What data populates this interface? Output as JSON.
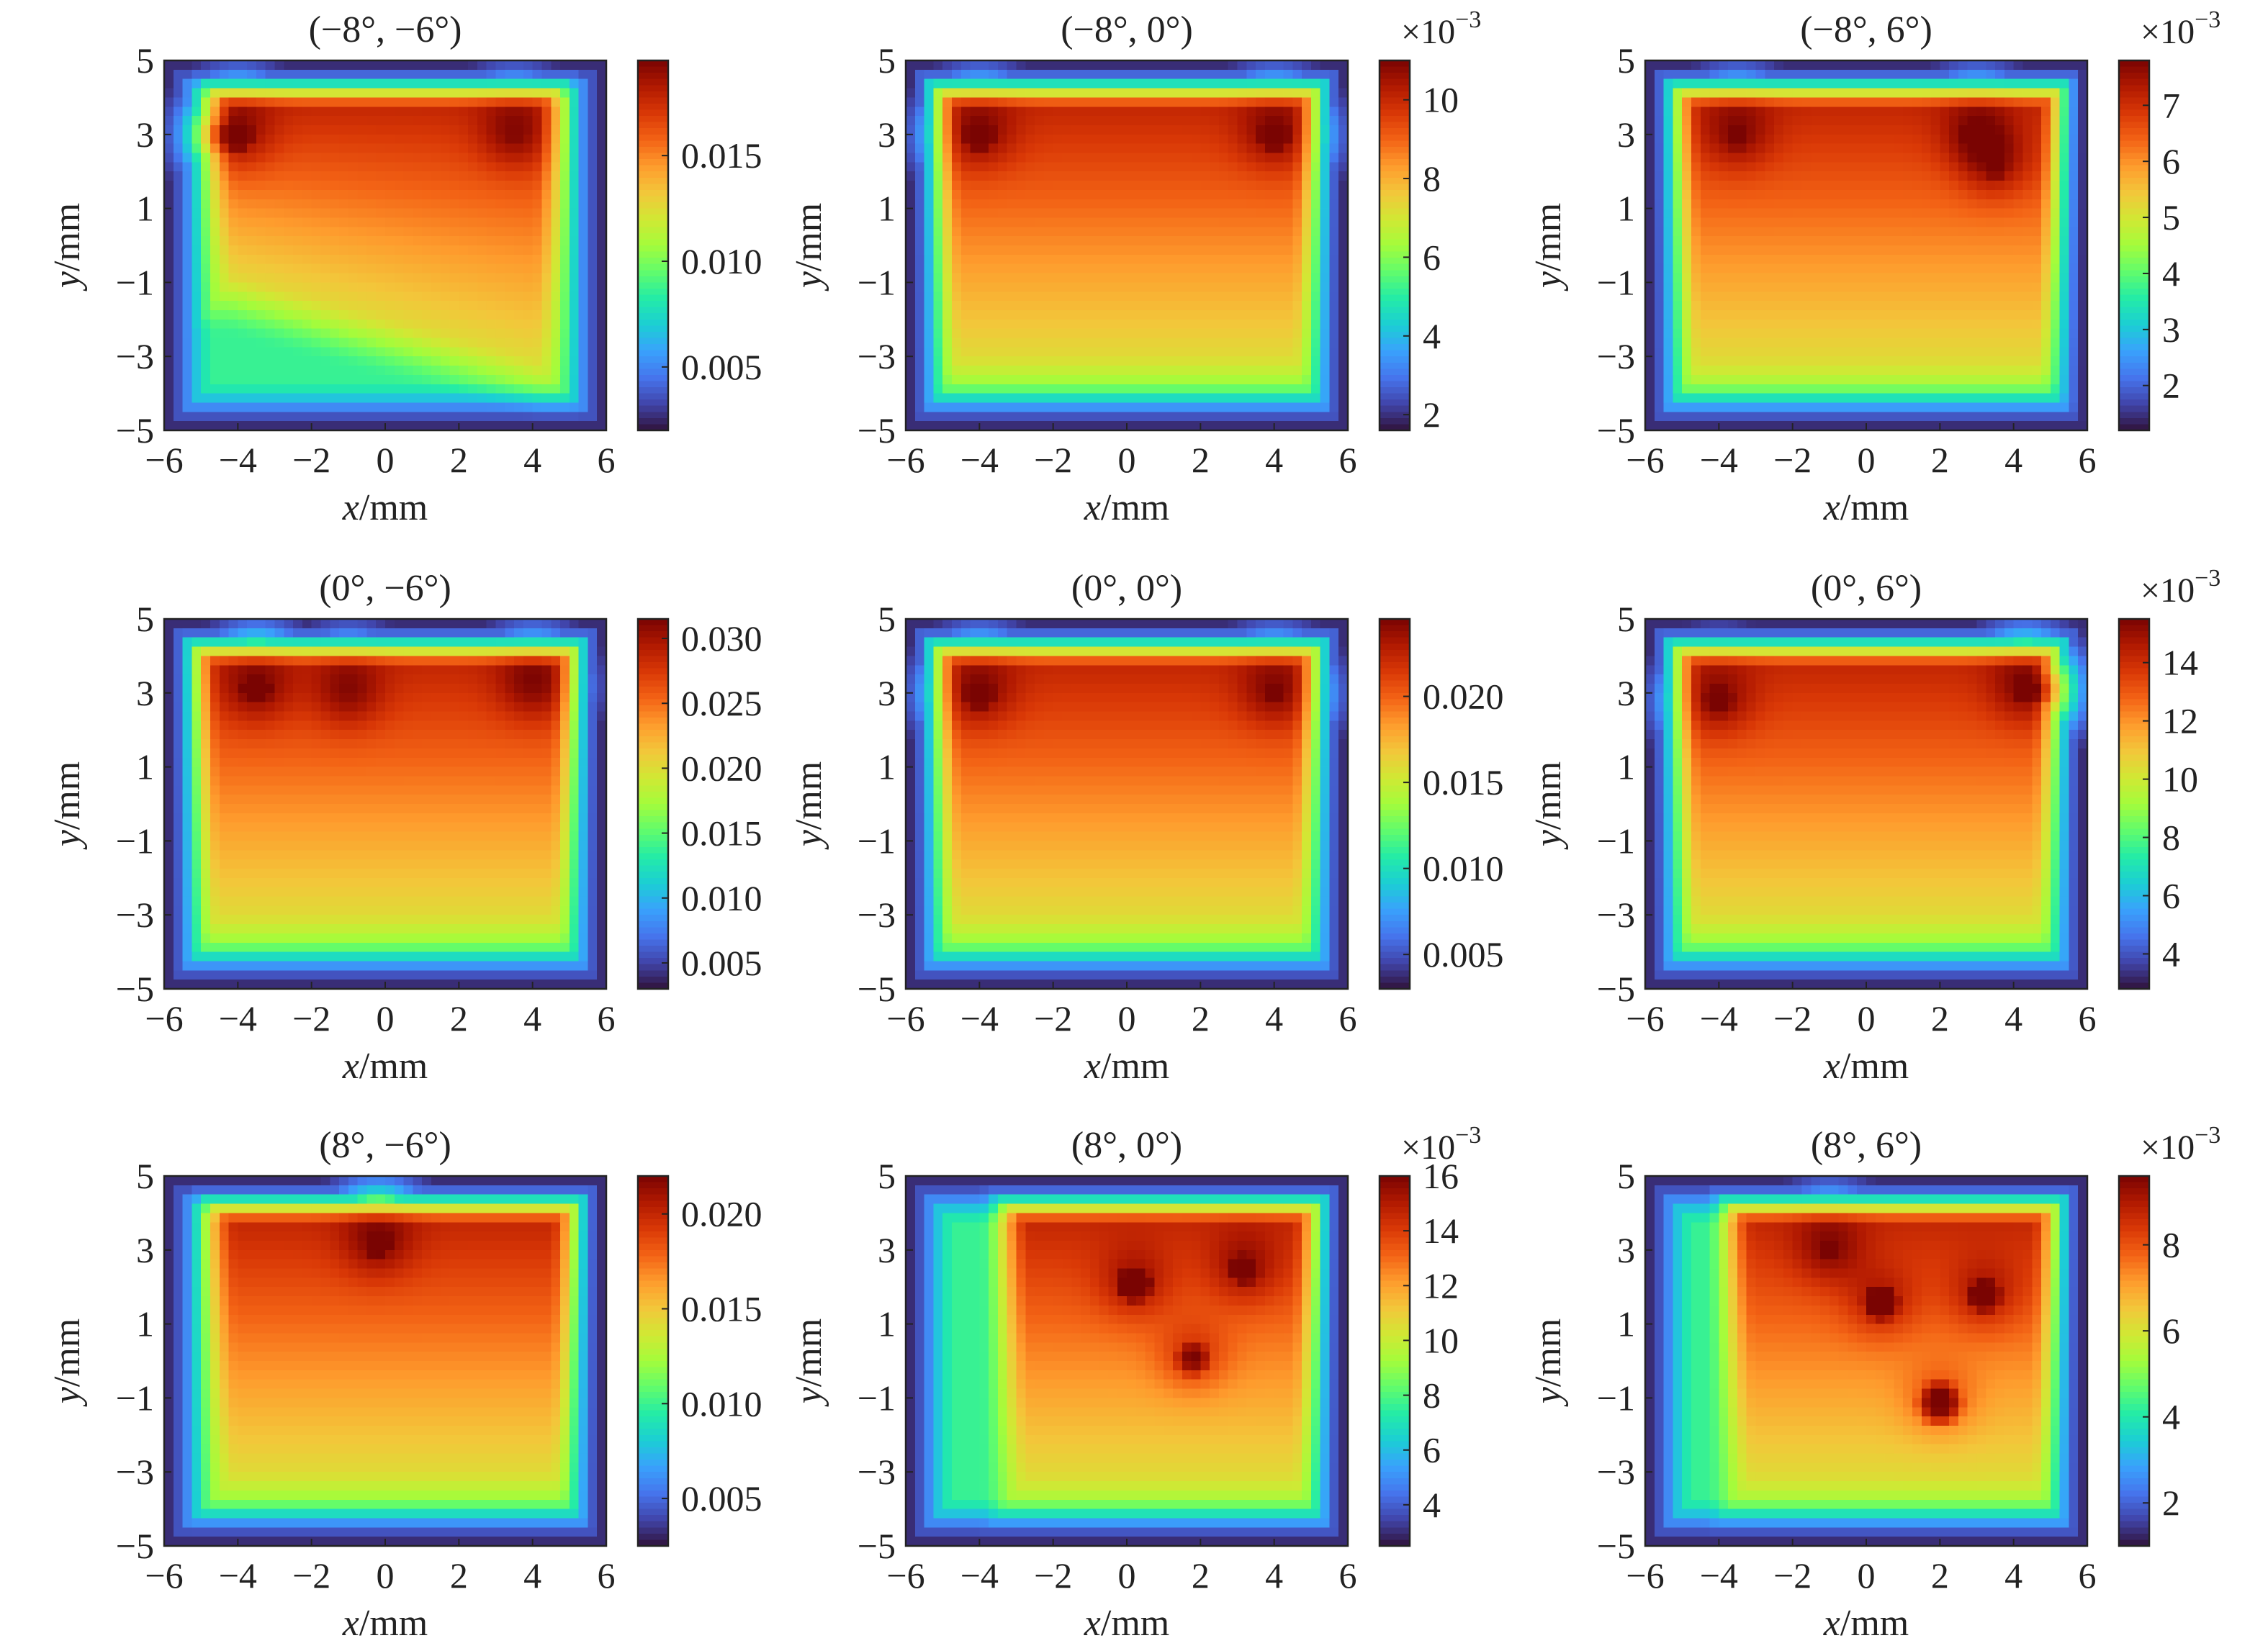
{
  "figure": {
    "columns": 3,
    "rows": 3
  },
  "colormap": [
    "#30123b",
    "#4145ab",
    "#4675ed",
    "#39a2fc",
    "#1bcfd4",
    "#24eca6",
    "#61fc6c",
    "#a4fc3b",
    "#d1e834",
    "#f3c63a",
    "#fe9b2d",
    "#f36315",
    "#d93806",
    "#b11901",
    "#7a0402"
  ],
  "chart_data": [
    {
      "type": "heatmap",
      "title": "(−8°, −6°)",
      "xlabel": "x/mm",
      "ylabel": "y/mm",
      "xlim": [
        -6,
        6
      ],
      "ylim": [
        -5,
        5
      ],
      "xticks": [
        "−6",
        "−4",
        "−2",
        "0",
        "2",
        "4",
        "6"
      ],
      "yticks": [
        "5",
        "3",
        "1",
        "−1",
        "−3",
        "−5"
      ],
      "colorbar": {
        "multiplier": "",
        "range": [
          0.002,
          0.0195
        ],
        "ticks": [
          0.005,
          0.01,
          0.015
        ],
        "tick_labels": [
          "0.005",
          "0.010",
          "0.015"
        ]
      },
      "field": {
        "plateau": {
          "x": [
            -4.2,
            4.2
          ],
          "y_bottom": [
            -1.3,
            -3.6
          ],
          "y_top": 3.8
        },
        "hotspots": [
          {
            "x": -4,
            "y": 3,
            "value": 0.019
          },
          {
            "x": 3.5,
            "y": 3,
            "value": 0.0175
          }
        ]
      }
    },
    {
      "type": "heatmap",
      "title": "(−8°, 0°)",
      "xlabel": "x/mm",
      "ylabel": "y/mm",
      "xlim": [
        -6,
        6
      ],
      "ylim": [
        -5,
        5
      ],
      "xticks": [
        "−6",
        "−4",
        "−2",
        "0",
        "2",
        "4",
        "6"
      ],
      "yticks": [
        "5",
        "3",
        "1",
        "−1",
        "−3",
        "−5"
      ],
      "colorbar": {
        "multiplier": "×10",
        "exponent": "−3",
        "range": [
          1.6,
          11
        ],
        "ticks": [
          2,
          4,
          6,
          8,
          10
        ],
        "tick_labels": [
          "2",
          "4",
          "6",
          "8",
          "10"
        ]
      },
      "field": {
        "plateau": {
          "x": [
            -4.6,
            4.6
          ],
          "y_bottom": [
            -3.5,
            -3.5
          ],
          "y_top": 3.8
        },
        "hotspots": [
          {
            "x": -4,
            "y": 3,
            "value": 10.8
          },
          {
            "x": 4,
            "y": 3,
            "value": 10.8
          }
        ]
      }
    },
    {
      "type": "heatmap",
      "title": "(−8°, 6°)",
      "xlabel": "x/mm",
      "ylabel": "y/mm",
      "xlim": [
        -6,
        6
      ],
      "ylim": [
        -5,
        5
      ],
      "xticks": [
        "−6",
        "−4",
        "−2",
        "0",
        "2",
        "4",
        "6"
      ],
      "yticks": [
        "5",
        "3",
        "1",
        "−1",
        "−3",
        "−5"
      ],
      "colorbar": {
        "multiplier": "×10",
        "exponent": "−3",
        "range": [
          1.2,
          7.8
        ],
        "ticks": [
          2,
          3,
          4,
          5,
          6,
          7
        ],
        "tick_labels": [
          "2",
          "3",
          "4",
          "5",
          "6",
          "7"
        ]
      },
      "field": {
        "plateau": {
          "x": [
            -4.6,
            4.8
          ],
          "y_bottom": [
            -3.6,
            -3.6
          ],
          "y_top": 3.8
        },
        "hotspots": [
          {
            "x": -3.5,
            "y": 3,
            "value": 7.5
          },
          {
            "x": 3,
            "y": 3,
            "value": 7.6
          },
          {
            "x": 3.5,
            "y": 2.2,
            "value": 7.4
          }
        ]
      }
    },
    {
      "type": "heatmap",
      "title": "(0°, −6°)",
      "xlabel": "x/mm",
      "ylabel": "y/mm",
      "xlim": [
        -6,
        6
      ],
      "ylim": [
        -5,
        5
      ],
      "xticks": [
        "−6",
        "−4",
        "−2",
        "0",
        "2",
        "4",
        "6"
      ],
      "yticks": [
        "5",
        "3",
        "1",
        "−1",
        "−3",
        "−5"
      ],
      "colorbar": {
        "multiplier": "",
        "range": [
          0.003,
          0.0315
        ],
        "ticks": [
          0.005,
          0.01,
          0.015,
          0.02,
          0.025,
          0.03
        ],
        "tick_labels": [
          "0.005",
          "0.010",
          "0.015",
          "0.020",
          "0.025",
          "0.030"
        ]
      },
      "field": {
        "plateau": {
          "x": [
            -4.6,
            4.6
          ],
          "y_bottom": [
            -3.5,
            -3.5
          ],
          "y_top": 3.8
        },
        "hotspots": [
          {
            "x": -3.5,
            "y": 3.1,
            "value": 0.031
          },
          {
            "x": -1,
            "y": 3,
            "value": 0.027
          },
          {
            "x": 4,
            "y": 3.2,
            "value": 0.022
          }
        ]
      }
    },
    {
      "type": "heatmap",
      "title": "(0°, 0°)",
      "xlabel": "x/mm",
      "ylabel": "y/mm",
      "xlim": [
        -6,
        6
      ],
      "ylim": [
        -5,
        5
      ],
      "xticks": [
        "−6",
        "−4",
        "−2",
        "0",
        "2",
        "4",
        "6"
      ],
      "yticks": [
        "5",
        "3",
        "1",
        "−1",
        "−3",
        "−5"
      ],
      "colorbar": {
        "multiplier": "",
        "range": [
          0.003,
          0.0245
        ],
        "ticks": [
          0.005,
          0.01,
          0.015,
          0.02
        ],
        "tick_labels": [
          "0.005",
          "0.010",
          "0.015",
          "0.020"
        ]
      },
      "field": {
        "plateau": {
          "x": [
            -4.6,
            4.6
          ],
          "y_bottom": [
            -3.5,
            -3.5
          ],
          "y_top": 3.8
        },
        "hotspots": [
          {
            "x": -4,
            "y": 3,
            "value": 0.024
          },
          {
            "x": 4,
            "y": 3,
            "value": 0.023
          }
        ]
      }
    },
    {
      "type": "heatmap",
      "title": "(0°, 6°)",
      "xlabel": "x/mm",
      "ylabel": "y/mm",
      "xlim": [
        -6,
        6
      ],
      "ylim": [
        -5,
        5
      ],
      "xticks": [
        "−6",
        "−4",
        "−2",
        "0",
        "2",
        "4",
        "6"
      ],
      "yticks": [
        "5",
        "3",
        "1",
        "−1",
        "−3",
        "−5"
      ],
      "colorbar": {
        "multiplier": "×10",
        "exponent": "−3",
        "range": [
          2.8,
          15.5
        ],
        "ticks": [
          4,
          6,
          8,
          10,
          12,
          14
        ],
        "tick_labels": [
          "4",
          "6",
          "8",
          "10",
          "12",
          "14"
        ]
      },
      "field": {
        "plateau": {
          "x": [
            -4.6,
            4.6
          ],
          "y_bottom": [
            -3.5,
            -3.5
          ],
          "y_top": 3.8
        },
        "hotspots": [
          {
            "x": -4,
            "y": 2.8,
            "value": 15
          },
          {
            "x": 4.3,
            "y": 3.1,
            "value": 15.2
          }
        ]
      }
    },
    {
      "type": "heatmap",
      "title": "(8°, −6°)",
      "xlabel": "x/mm",
      "ylabel": "y/mm",
      "xlim": [
        -6,
        6
      ],
      "ylim": [
        -5,
        5
      ],
      "xticks": [
        "−6",
        "−4",
        "−2",
        "0",
        "2",
        "4",
        "6"
      ],
      "yticks": [
        "5",
        "3",
        "1",
        "−1",
        "−3",
        "−5"
      ],
      "colorbar": {
        "multiplier": "",
        "range": [
          0.0025,
          0.022
        ],
        "ticks": [
          0.005,
          0.01,
          0.015,
          0.02
        ],
        "tick_labels": [
          "0.005",
          "0.010",
          "0.015",
          "0.020"
        ]
      },
      "field": {
        "plateau": {
          "x": [
            -4.2,
            4.6
          ],
          "y_bottom": [
            -3.5,
            -3.5
          ],
          "y_top": 3.8
        },
        "hotspots": [
          {
            "x": -0.2,
            "y": 3.2,
            "value": 0.0215
          }
        ]
      }
    },
    {
      "type": "heatmap",
      "title": "(8°, 0°)",
      "xlabel": "x/mm",
      "ylabel": "y/mm",
      "xlim": [
        -6,
        6
      ],
      "ylim": [
        -5,
        5
      ],
      "xticks": [
        "−6",
        "−4",
        "−2",
        "0",
        "2",
        "4",
        "6"
      ],
      "yticks": [
        "5",
        "3",
        "1",
        "−1",
        "−3",
        "−5"
      ],
      "colorbar": {
        "multiplier": "×10",
        "exponent": "−3",
        "range": [
          2.5,
          16
        ],
        "ticks": [
          4,
          6,
          8,
          10,
          12,
          14,
          16
        ],
        "tick_labels": [
          "4",
          "6",
          "8",
          "10",
          "12",
          "14",
          "16"
        ]
      },
      "field": {
        "plateau": {
          "x": [
            -2.8,
            4.6
          ],
          "y_bottom": [
            -3.6,
            -3.6
          ],
          "y_top": 3.8
        },
        "hotspots": [
          {
            "x": 0.2,
            "y": 2.1,
            "value": 16
          },
          {
            "x": 3.2,
            "y": 2.5,
            "value": 15.5
          },
          {
            "x": 1.8,
            "y": 0.1,
            "value": 14.5
          }
        ]
      }
    },
    {
      "type": "heatmap",
      "title": "(8°, 6°)",
      "xlabel": "x/mm",
      "ylabel": "y/mm",
      "xlim": [
        -6,
        6
      ],
      "ylim": [
        -5,
        5
      ],
      "xticks": [
        "−6",
        "−4",
        "−2",
        "0",
        "2",
        "4",
        "6"
      ],
      "yticks": [
        "5",
        "3",
        "1",
        "−1",
        "−3",
        "−5"
      ],
      "colorbar": {
        "multiplier": "×10",
        "exponent": "−3",
        "range": [
          1,
          9.6
        ],
        "ticks": [
          2,
          4,
          6,
          8
        ],
        "tick_labels": [
          "2",
          "4",
          "6",
          "8"
        ]
      },
      "field": {
        "plateau": {
          "x": [
            -3.2,
            4.6
          ],
          "y_bottom": [
            -3.6,
            -3.6
          ],
          "y_top": 3.8
        },
        "hotspots": [
          {
            "x": 0.4,
            "y": 1.6,
            "value": 9.4
          },
          {
            "x": 3.2,
            "y": 1.8,
            "value": 9.3
          },
          {
            "x": -1,
            "y": 3,
            "value": 9
          },
          {
            "x": 2,
            "y": -1.1,
            "value": 9
          }
        ]
      }
    }
  ]
}
